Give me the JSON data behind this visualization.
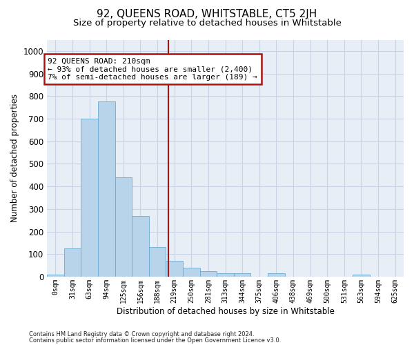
{
  "title": "92, QUEENS ROAD, WHITSTABLE, CT5 2JH",
  "subtitle": "Size of property relative to detached houses in Whitstable",
  "xlabel": "Distribution of detached houses by size in Whitstable",
  "ylabel": "Number of detached properties",
  "bar_labels": [
    "0sqm",
    "31sqm",
    "63sqm",
    "94sqm",
    "125sqm",
    "156sqm",
    "188sqm",
    "219sqm",
    "250sqm",
    "281sqm",
    "313sqm",
    "344sqm",
    "375sqm",
    "406sqm",
    "438sqm",
    "469sqm",
    "500sqm",
    "531sqm",
    "563sqm",
    "594sqm",
    "625sqm"
  ],
  "bar_values": [
    8,
    125,
    700,
    775,
    440,
    270,
    130,
    70,
    40,
    25,
    15,
    15,
    0,
    15,
    0,
    0,
    0,
    0,
    10,
    0,
    0
  ],
  "bar_color": "#b8d4ea",
  "bar_edge_color": "#6aaad4",
  "vline_x": 6.65,
  "vline_color": "#aa1111",
  "annotation_text": "92 QUEENS ROAD: 210sqm\n← 93% of detached houses are smaller (2,400)\n7% of semi-detached houses are larger (189) →",
  "annotation_box_color": "#ffffff",
  "annotation_box_edge": "#aa1111",
  "ylim": [
    0,
    1050
  ],
  "yticks": [
    0,
    100,
    200,
    300,
    400,
    500,
    600,
    700,
    800,
    900,
    1000
  ],
  "grid_color": "#c8d4e4",
  "bg_color": "#e8eef6",
  "footer1": "Contains HM Land Registry data © Crown copyright and database right 2024.",
  "footer2": "Contains public sector information licensed under the Open Government Licence v3.0.",
  "title_fontsize": 11,
  "subtitle_fontsize": 9.5
}
